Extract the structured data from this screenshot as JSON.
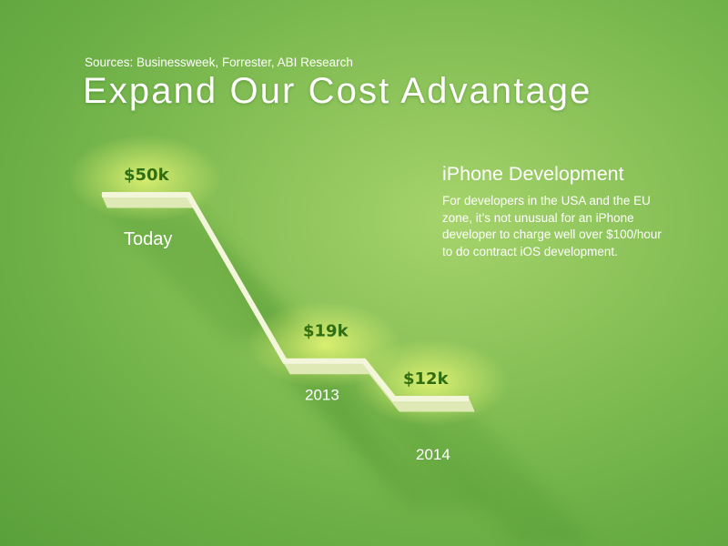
{
  "sources": "Sources: Businessweek, Forrester, ABI Research",
  "title": "Expand Our Cost Advantage",
  "panel": {
    "heading": "iPhone Development",
    "body": "For developers in the USA and the EU zone, it’s not unusual for an iPhone developer to charge well over $100/hour to do contract iOS development."
  },
  "colors": {
    "background": "#85bf55",
    "step_top": "#f4f6dc",
    "step_front": "#dfe9b6",
    "value_text": "#2f6e12",
    "text": "#ffffff"
  },
  "chart_data": {
    "type": "line",
    "categories": [
      "Today",
      "2013",
      "2014"
    ],
    "values": [
      50,
      19,
      12
    ],
    "value_labels": [
      "$50k",
      "$19k",
      "$12k"
    ],
    "unit": "thousand USD"
  }
}
